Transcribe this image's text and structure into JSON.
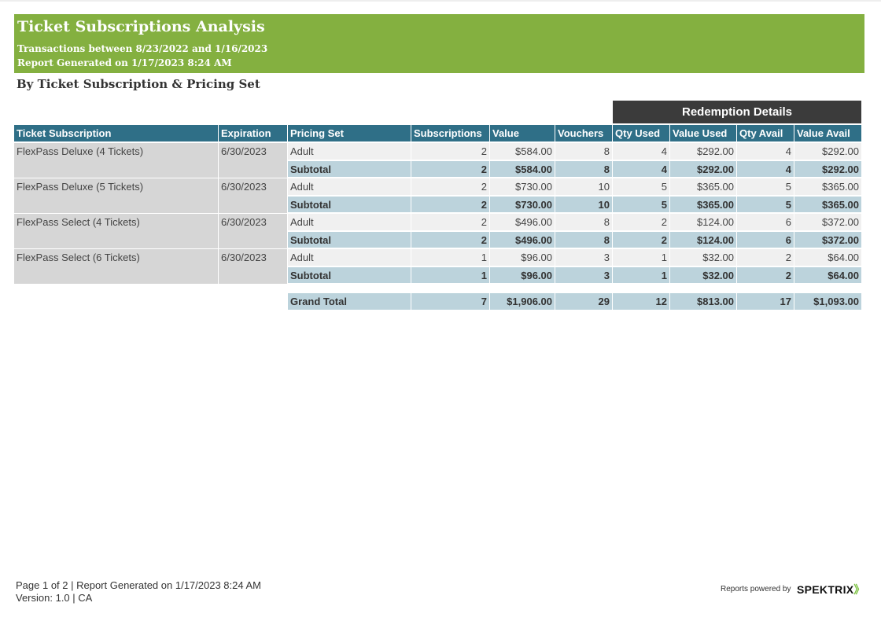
{
  "header": {
    "title": "Ticket Subscriptions Analysis",
    "range": "Transactions between 8/23/2022 and 1/16/2023",
    "generated": "Report Generated on 1/17/2023 8:24 AM"
  },
  "section_title": "By Ticket Subscription & Pricing Set",
  "redemption_label": "Redemption Details",
  "columns": [
    "Ticket Subscription",
    "Expiration",
    "Pricing Set",
    "Subscriptions",
    "Value",
    "Vouchers",
    "Qty Used",
    "Value Used",
    "Qty Avail",
    "Value Avail"
  ],
  "groups": [
    {
      "name": "FlexPass Deluxe (4 Tickets)",
      "expiration": "6/30/2023",
      "row": [
        "Adult",
        "2",
        "$584.00",
        "8",
        "4",
        "$292.00",
        "4",
        "$292.00"
      ],
      "subtotal": [
        "Subtotal",
        "2",
        "$584.00",
        "8",
        "4",
        "$292.00",
        "4",
        "$292.00"
      ]
    },
    {
      "name": "FlexPass Deluxe (5 Tickets)",
      "expiration": "6/30/2023",
      "row": [
        "Adult",
        "2",
        "$730.00",
        "10",
        "5",
        "$365.00",
        "5",
        "$365.00"
      ],
      "subtotal": [
        "Subtotal",
        "2",
        "$730.00",
        "10",
        "5",
        "$365.00",
        "5",
        "$365.00"
      ]
    },
    {
      "name": "FlexPass Select (4 Tickets)",
      "expiration": "6/30/2023",
      "row": [
        "Adult",
        "2",
        "$496.00",
        "8",
        "2",
        "$124.00",
        "6",
        "$372.00"
      ],
      "subtotal": [
        "Subtotal",
        "2",
        "$496.00",
        "8",
        "2",
        "$124.00",
        "6",
        "$372.00"
      ]
    },
    {
      "name": "FlexPass Select (6 Tickets)",
      "expiration": "6/30/2023",
      "row": [
        "Adult",
        "1",
        "$96.00",
        "3",
        "1",
        "$32.00",
        "2",
        "$64.00"
      ],
      "subtotal": [
        "Subtotal",
        "1",
        "$96.00",
        "3",
        "1",
        "$32.00",
        "2",
        "$64.00"
      ]
    }
  ],
  "grand_total": [
    "Grand Total",
    "7",
    "$1,906.00",
    "29",
    "12",
    "$813.00",
    "17",
    "$1,093.00"
  ],
  "footer": {
    "page": "Page 1 of 2 | Report Generated on 1/17/2023 8:24 AM",
    "version": "Version: 1.0 | CA",
    "powered": "Reports powered by",
    "logo": "SPEKTRIX",
    "logo_mark": "》"
  },
  "colors": {
    "banner": "#84b040",
    "header": "#2f6f87",
    "subtotal": "#bcd3dc",
    "redemption": "#3b3b3b"
  }
}
